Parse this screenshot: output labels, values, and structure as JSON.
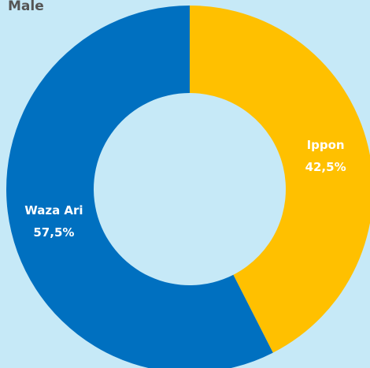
{
  "chart_data": {
    "type": "donut",
    "title": "Male",
    "categories": [
      "Ippon",
      "Waza Ari"
    ],
    "values": [
      42.5,
      57.5
    ],
    "value_labels": [
      "42,5%",
      "57,5%"
    ],
    "colors": [
      "#ffc000",
      "#0070c0"
    ]
  }
}
